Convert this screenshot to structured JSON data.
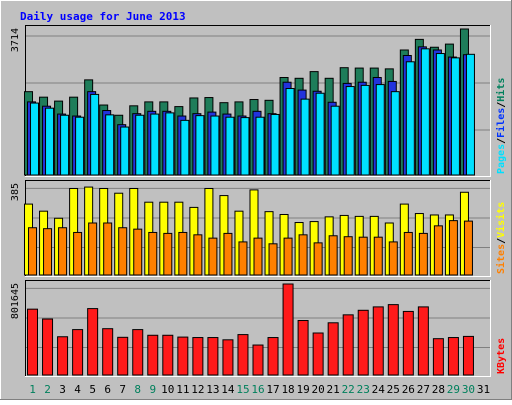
{
  "chart_data": {
    "type": "bar",
    "title": "Daily usage for June 2013",
    "categories": [
      "1",
      "2",
      "3",
      "4",
      "5",
      "6",
      "7",
      "8",
      "9",
      "10",
      "11",
      "12",
      "13",
      "14",
      "15",
      "16",
      "17",
      "18",
      "19",
      "20",
      "21",
      "22",
      "23",
      "24",
      "25",
      "26",
      "27",
      "28",
      "29",
      "30",
      "31"
    ],
    "weekend_days": [
      "1",
      "2",
      "8",
      "9",
      "15",
      "16",
      "22",
      "23",
      "29",
      "30"
    ],
    "panels": [
      {
        "name": "hits-files-pages",
        "ymax_label": "3714",
        "ymax": 3714,
        "legend": [
          {
            "label": "Pages",
            "color": "#00e0ff"
          },
          {
            "label": "Files",
            "color": "#0033ff"
          },
          {
            "label": "Hits",
            "color": "#00805c"
          }
        ],
        "separator": "/",
        "series": [
          {
            "name": "Hits",
            "color": "#1e7d5a",
            "values": [
              2120,
              1980,
              1880,
              1980,
              2420,
              1780,
              1520,
              1760,
              1860,
              1860,
              1740,
              1960,
              1970,
              1840,
              1860,
              1920,
              1900,
              2480,
              2460,
              2630,
              2460,
              2730,
              2720,
              2720,
              2700,
              3180,
              3450,
              3250,
              3330,
              3714,
              null
            ]
          },
          {
            "name": "Files",
            "color": "#2233dd",
            "values": [
              1860,
              1750,
              1550,
              1500,
              2120,
              1640,
              1280,
              1560,
              1620,
              1620,
              1500,
              1560,
              1600,
              1550,
              1500,
              1620,
              1560,
              2360,
              2160,
              2130,
              1850,
              2330,
              2360,
              2480,
              2380,
              3040,
              3260,
              3180,
              3000,
              3060,
              null
            ]
          },
          {
            "name": "Pages",
            "color": "#00e0ff",
            "values": [
              1830,
              1700,
              1520,
              1470,
              2050,
              1530,
              1220,
              1520,
              1550,
              1580,
              1390,
              1510,
              1500,
              1470,
              1460,
              1470,
              1540,
              2200,
              1930,
              2080,
              1750,
              2250,
              2280,
              2300,
              2120,
              2880,
              3210,
              3090,
              2980,
              3070,
              null
            ]
          }
        ]
      },
      {
        "name": "visits-sites",
        "ymax_label": "385",
        "ymax": 385,
        "legend": [
          {
            "label": "Sites",
            "color": "#ff8000"
          },
          {
            "label": "Visits",
            "color": "#ffff00"
          }
        ],
        "separator": "/",
        "series": [
          {
            "name": "Visits",
            "color": "#ffff00",
            "values": [
              300,
              270,
              240,
              366,
              372,
              366,
              346,
              366,
              308,
              308,
              308,
              286,
              366,
              336,
              270,
              360,
              268,
              256,
              222,
              226,
              246,
              252,
              248,
              248,
              220,
              300,
              260,
              254,
              254,
              350,
              null
            ]
          },
          {
            "name": "Sites",
            "color": "#ff8000",
            "values": [
              200,
              196,
              200,
              180,
              220,
              220,
              200,
              194,
              180,
              176,
              180,
              170,
              156,
              176,
              140,
              156,
              132,
              156,
              170,
              136,
              166,
              162,
              160,
              160,
              140,
              180,
              176,
              208,
              230,
              228,
              null
            ]
          }
        ]
      },
      {
        "name": "kbytes",
        "ymax_label": "801645",
        "ymax": 801645,
        "legend": [
          {
            "label": "KBytes",
            "color": "#ff0000"
          }
        ],
        "separator": "",
        "series": [
          {
            "name": "KBytes",
            "color": "#ff1a1a",
            "values": [
              580000,
              493000,
              337000,
              400000,
              585000,
              408000,
              332000,
              400000,
              350000,
              350000,
              334000,
              330000,
              330000,
              310000,
              356000,
              264000,
              330000,
              801645,
              480000,
              370000,
              460000,
              530000,
              570000,
              600000,
              620000,
              560000,
              600000,
              320000,
              330000,
              340000,
              null
            ]
          }
        ]
      }
    ],
    "grid": true
  }
}
